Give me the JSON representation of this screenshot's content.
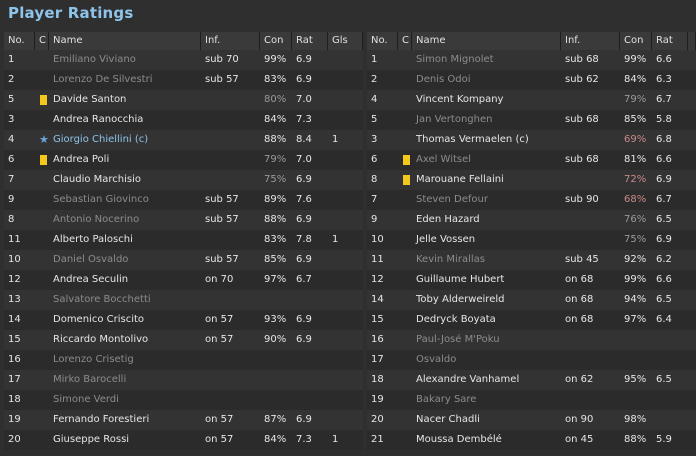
{
  "title": "Player Ratings",
  "headers": {
    "no": "No.",
    "c": "C",
    "name": "Name",
    "inf": "Inf.",
    "con": "Con",
    "rat": "Rat",
    "gls": "Gls"
  },
  "left": [
    {
      "no": "1",
      "name": "Emiliano Viviano",
      "dim": true,
      "inf": "sub 70",
      "con": "99%",
      "rat": "6.9",
      "gls": "",
      "card": "",
      "conStyle": ""
    },
    {
      "no": "2",
      "name": "Lorenzo De Silvestri",
      "dim": true,
      "inf": "sub 57",
      "con": "83%",
      "rat": "6.9",
      "gls": "",
      "card": "",
      "conStyle": ""
    },
    {
      "no": "5",
      "name": "Davide Santon",
      "dim": false,
      "inf": "",
      "con": "80%",
      "rat": "7.0",
      "gls": "",
      "card": "yellow",
      "conStyle": "low"
    },
    {
      "no": "3",
      "name": "Andrea Ranocchia",
      "dim": false,
      "inf": "",
      "con": "84%",
      "rat": "7.3",
      "gls": "",
      "card": "",
      "conStyle": ""
    },
    {
      "no": "4",
      "name": "Giorgio Chiellini (c)",
      "dim": false,
      "captain": true,
      "inf": "",
      "con": "88%",
      "rat": "8.4",
      "gls": "1",
      "card": "star",
      "conStyle": ""
    },
    {
      "no": "6",
      "name": "Andrea Poli",
      "dim": false,
      "inf": "",
      "con": "79%",
      "rat": "7.0",
      "gls": "",
      "card": "yellow",
      "conStyle": "low"
    },
    {
      "no": "7",
      "name": "Claudio Marchisio",
      "dim": false,
      "inf": "",
      "con": "75%",
      "rat": "6.9",
      "gls": "",
      "card": "",
      "conStyle": "low"
    },
    {
      "no": "9",
      "name": "Sebastian Giovinco",
      "dim": true,
      "inf": "sub 57",
      "con": "89%",
      "rat": "7.6",
      "gls": "",
      "card": "",
      "conStyle": ""
    },
    {
      "no": "8",
      "name": "Antonio Nocerino",
      "dim": true,
      "inf": "sub 57",
      "con": "88%",
      "rat": "6.9",
      "gls": "",
      "card": "",
      "conStyle": ""
    },
    {
      "no": "11",
      "name": "Alberto Paloschi",
      "dim": false,
      "inf": "",
      "con": "83%",
      "rat": "7.8",
      "gls": "1",
      "card": "",
      "conStyle": ""
    },
    {
      "no": "10",
      "name": "Daniel Osvaldo",
      "dim": true,
      "inf": "sub 57",
      "con": "85%",
      "rat": "6.9",
      "gls": "",
      "card": "",
      "conStyle": ""
    },
    {
      "no": "12",
      "name": "Andrea Seculin",
      "dim": false,
      "inf": "on 70",
      "con": "97%",
      "rat": "6.7",
      "gls": "",
      "card": "",
      "conStyle": ""
    },
    {
      "no": "13",
      "name": "Salvatore Bocchetti",
      "dim": true,
      "inf": "",
      "con": "",
      "rat": "",
      "gls": "",
      "card": "",
      "conStyle": ""
    },
    {
      "no": "14",
      "name": "Domenico Criscito",
      "dim": false,
      "inf": "on 57",
      "con": "93%",
      "rat": "6.9",
      "gls": "",
      "card": "",
      "conStyle": ""
    },
    {
      "no": "15",
      "name": "Riccardo Montolivo",
      "dim": false,
      "inf": "on 57",
      "con": "90%",
      "rat": "6.9",
      "gls": "",
      "card": "",
      "conStyle": ""
    },
    {
      "no": "16",
      "name": "Lorenzo Crisetig",
      "dim": true,
      "inf": "",
      "con": "",
      "rat": "",
      "gls": "",
      "card": "",
      "conStyle": ""
    },
    {
      "no": "17",
      "name": "Mirko Barocelli",
      "dim": true,
      "inf": "",
      "con": "",
      "rat": "",
      "gls": "",
      "card": "",
      "conStyle": ""
    },
    {
      "no": "18",
      "name": "Simone Verdi",
      "dim": true,
      "inf": "",
      "con": "",
      "rat": "",
      "gls": "",
      "card": "",
      "conStyle": ""
    },
    {
      "no": "19",
      "name": "Fernando Forestieri",
      "dim": false,
      "inf": "on 57",
      "con": "87%",
      "rat": "6.9",
      "gls": "",
      "card": "",
      "conStyle": ""
    },
    {
      "no": "20",
      "name": "Giuseppe Rossi",
      "dim": false,
      "inf": "on 57",
      "con": "84%",
      "rat": "7.3",
      "gls": "1",
      "card": "",
      "conStyle": ""
    }
  ],
  "right": [
    {
      "no": "1",
      "name": "Simon Mignolet",
      "dim": true,
      "inf": "sub 68",
      "con": "99%",
      "rat": "6.6",
      "card": "",
      "conStyle": ""
    },
    {
      "no": "2",
      "name": "Denis Odoi",
      "dim": true,
      "inf": "sub 62",
      "con": "84%",
      "rat": "6.3",
      "card": "",
      "conStyle": ""
    },
    {
      "no": "4",
      "name": "Vincent Kompany",
      "dim": false,
      "inf": "",
      "con": "79%",
      "rat": "6.7",
      "card": "",
      "conStyle": "low"
    },
    {
      "no": "5",
      "name": "Jan Vertonghen",
      "dim": true,
      "inf": "sub 68",
      "con": "85%",
      "rat": "5.8",
      "card": "",
      "conStyle": ""
    },
    {
      "no": "3",
      "name": "Thomas Vermaelen (c)",
      "dim": false,
      "inf": "",
      "con": "69%",
      "rat": "6.8",
      "card": "",
      "conStyle": "red"
    },
    {
      "no": "6",
      "name": "Axel Witsel",
      "dim": true,
      "inf": "sub 68",
      "con": "81%",
      "rat": "6.6",
      "card": "yellow",
      "conStyle": ""
    },
    {
      "no": "8",
      "name": "Marouane Fellaini",
      "dim": false,
      "inf": "",
      "con": "72%",
      "rat": "6.9",
      "card": "yellow",
      "conStyle": "red"
    },
    {
      "no": "7",
      "name": "Steven Defour",
      "dim": true,
      "inf": "sub 90",
      "con": "68%",
      "rat": "6.7",
      "card": "",
      "conStyle": "red"
    },
    {
      "no": "9",
      "name": "Eden Hazard",
      "dim": false,
      "inf": "",
      "con": "76%",
      "rat": "6.5",
      "card": "",
      "conStyle": "low"
    },
    {
      "no": "10",
      "name": "Jelle Vossen",
      "dim": false,
      "inf": "",
      "con": "75%",
      "rat": "6.9",
      "card": "",
      "conStyle": "low"
    },
    {
      "no": "11",
      "name": "Kevin Mirallas",
      "dim": true,
      "inf": "sub 45",
      "con": "92%",
      "rat": "6.2",
      "card": "",
      "conStyle": ""
    },
    {
      "no": "12",
      "name": "Guillaume Hubert",
      "dim": false,
      "inf": "on 68",
      "con": "99%",
      "rat": "6.6",
      "card": "",
      "conStyle": ""
    },
    {
      "no": "14",
      "name": "Toby Alderweireld",
      "dim": false,
      "inf": "on 68",
      "con": "94%",
      "rat": "6.5",
      "card": "",
      "conStyle": ""
    },
    {
      "no": "15",
      "name": "Dedryck Boyata",
      "dim": false,
      "inf": "on 68",
      "con": "97%",
      "rat": "6.4",
      "card": "",
      "conStyle": ""
    },
    {
      "no": "16",
      "name": "Paul-José M'Poku",
      "dim": true,
      "inf": "",
      "con": "",
      "rat": "",
      "card": "",
      "conStyle": ""
    },
    {
      "no": "17",
      "name": "Osvaldo",
      "dim": true,
      "inf": "",
      "con": "",
      "rat": "",
      "card": "",
      "conStyle": ""
    },
    {
      "no": "18",
      "name": "Alexandre Vanhamel",
      "dim": false,
      "inf": "on 62",
      "con": "95%",
      "rat": "6.5",
      "card": "",
      "conStyle": ""
    },
    {
      "no": "19",
      "name": "Bakary Sare",
      "dim": true,
      "inf": "",
      "con": "",
      "rat": "",
      "card": "",
      "conStyle": ""
    },
    {
      "no": "20",
      "name": "Nacer Chadli",
      "dim": false,
      "inf": "on 90",
      "con": "98%",
      "rat": "",
      "card": "",
      "conStyle": ""
    },
    {
      "no": "21",
      "name": "Moussa Dembélé",
      "dim": false,
      "inf": "on 45",
      "con": "88%",
      "rat": "5.9",
      "card": "",
      "conStyle": ""
    }
  ]
}
